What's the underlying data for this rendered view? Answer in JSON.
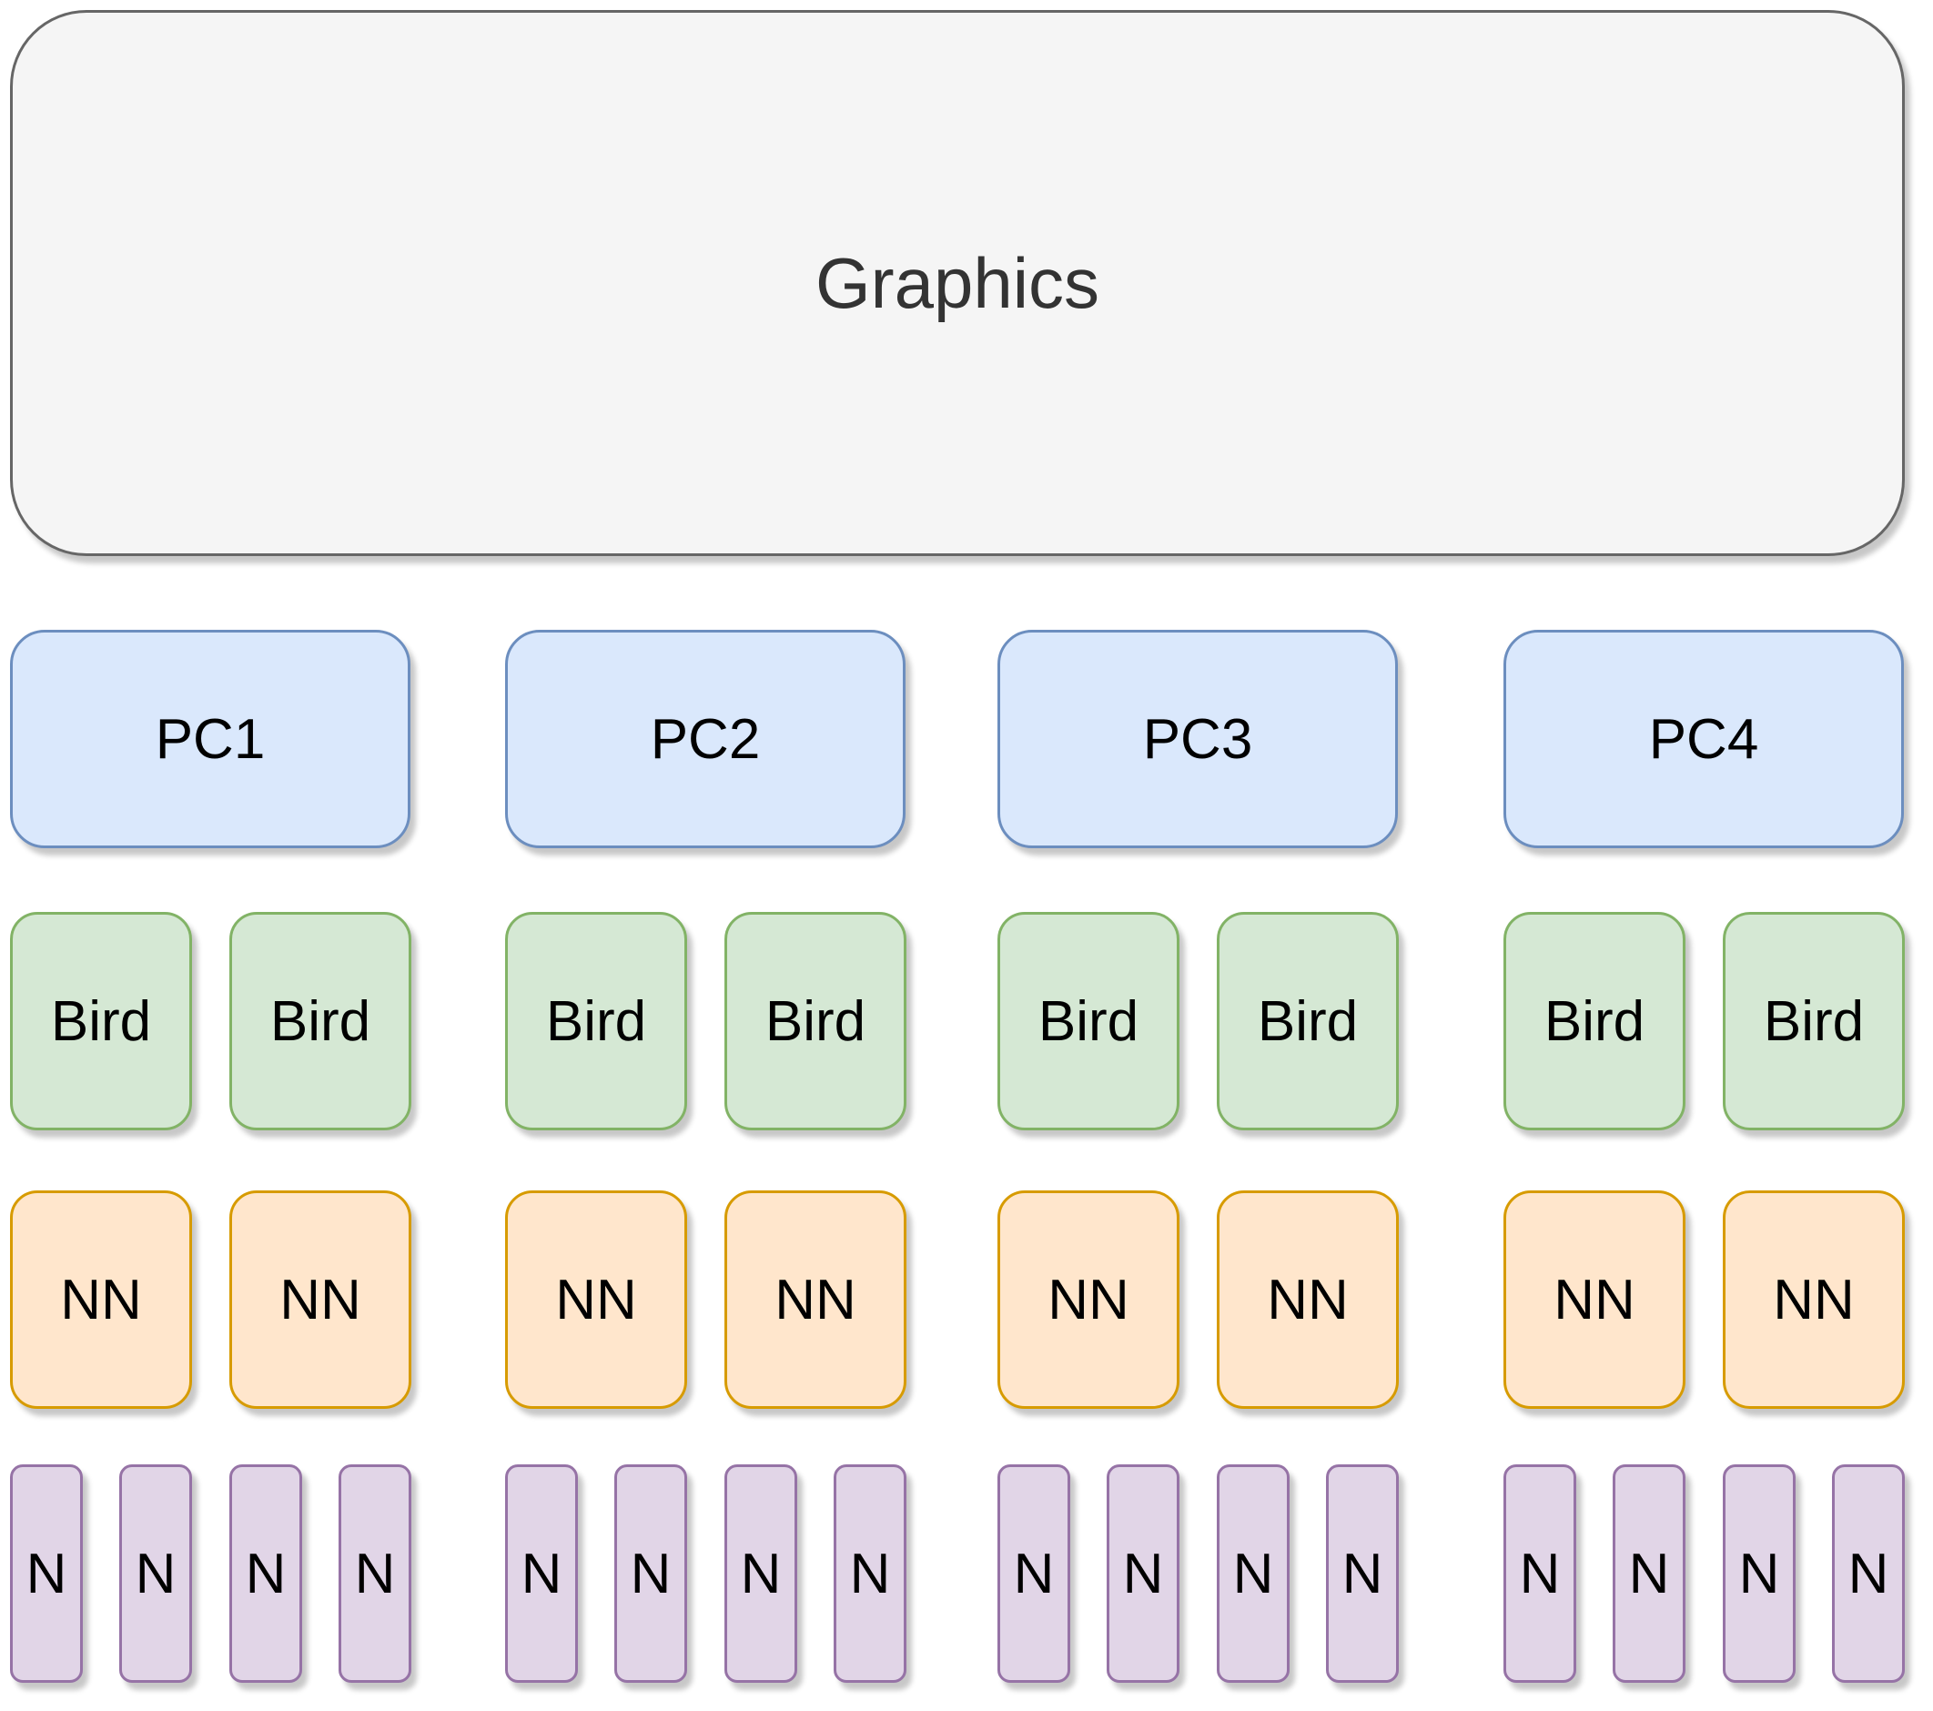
{
  "graphics": {
    "label": "Graphics",
    "fill": "#f5f5f5",
    "stroke": "#666666"
  },
  "pcs": [
    {
      "label": "PC1"
    },
    {
      "label": "PC2"
    },
    {
      "label": "PC3"
    },
    {
      "label": "PC4"
    }
  ],
  "birds": [
    {
      "label": "Bird"
    },
    {
      "label": "Bird"
    },
    {
      "label": "Bird"
    },
    {
      "label": "Bird"
    },
    {
      "label": "Bird"
    },
    {
      "label": "Bird"
    },
    {
      "label": "Bird"
    },
    {
      "label": "Bird"
    }
  ],
  "nns": [
    {
      "label": "NN"
    },
    {
      "label": "NN"
    },
    {
      "label": "NN"
    },
    {
      "label": "NN"
    },
    {
      "label": "NN"
    },
    {
      "label": "NN"
    },
    {
      "label": "NN"
    },
    {
      "label": "NN"
    }
  ],
  "ns": [
    {
      "label": "N"
    },
    {
      "label": "N"
    },
    {
      "label": "N"
    },
    {
      "label": "N"
    },
    {
      "label": "N"
    },
    {
      "label": "N"
    },
    {
      "label": "N"
    },
    {
      "label": "N"
    },
    {
      "label": "N"
    },
    {
      "label": "N"
    },
    {
      "label": "N"
    },
    {
      "label": "N"
    },
    {
      "label": "N"
    },
    {
      "label": "N"
    },
    {
      "label": "N"
    },
    {
      "label": "N"
    }
  ],
  "colors": {
    "pc_fill": "#dae8fc",
    "pc_stroke": "#6c8ebf",
    "bird_fill": "#d5e8d4",
    "bird_stroke": "#82b366",
    "nn_fill": "#ffe6cc",
    "nn_stroke": "#d79b00",
    "n_fill": "#e1d5e7",
    "n_stroke": "#9673a6"
  }
}
